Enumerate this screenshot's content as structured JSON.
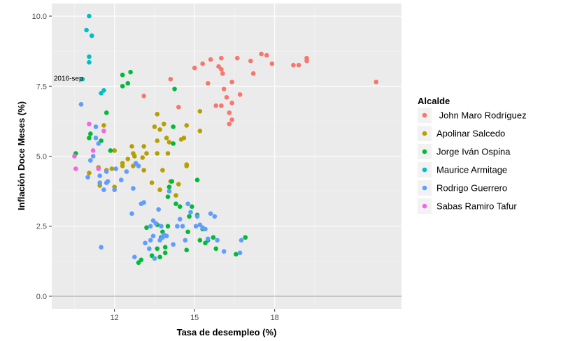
{
  "chart_data": {
    "type": "scatter",
    "xlabel": "Tasa de desempleo (%)",
    "ylabel": "Inflación Doce Meses (%)",
    "xlim": [
      9.65,
      22.75
    ],
    "ylim": [
      -0.45,
      10.45
    ],
    "x_ticks": [
      12,
      15,
      18
    ],
    "x_tick_labels": [
      "12",
      "15",
      "18"
    ],
    "y_ticks": [
      0,
      2.5,
      5,
      7.5,
      10
    ],
    "y_tick_labels": [
      "0.0",
      "2.5",
      "5.0",
      "7.5",
      "10.0"
    ],
    "hline": 0,
    "grid": true,
    "legend": {
      "title": "Alcalde",
      "placement": "right"
    },
    "annotations": [
      {
        "text": "2016-sep",
        "x": 10.9,
        "y": 7.78
      }
    ],
    "series": [
      {
        "name": " John Maro Rodríguez",
        "color": "#F8766D",
        "points": [
          [
            13.1,
            7.15
          ],
          [
            14.1,
            7.75
          ],
          [
            14.4,
            6.75
          ],
          [
            15.0,
            8.15
          ],
          [
            15.3,
            8.3
          ],
          [
            15.6,
            8.45
          ],
          [
            15.5,
            7.6
          ],
          [
            15.8,
            6.8
          ],
          [
            15.9,
            8.2
          ],
          [
            16.0,
            8.1
          ],
          [
            16.05,
            7.95
          ],
          [
            16.0,
            8.5
          ],
          [
            16.1,
            7.4
          ],
          [
            16.2,
            7.1
          ],
          [
            16.0,
            6.8
          ],
          [
            16.3,
            6.55
          ],
          [
            16.3,
            6.15
          ],
          [
            16.4,
            6.3
          ],
          [
            16.4,
            6.9
          ],
          [
            16.4,
            7.65
          ],
          [
            16.6,
            8.5
          ],
          [
            16.7,
            7.2
          ],
          [
            17.1,
            8.4
          ],
          [
            17.2,
            7.95
          ],
          [
            17.5,
            8.65
          ],
          [
            17.7,
            8.6
          ],
          [
            17.9,
            8.3
          ],
          [
            18.7,
            8.25
          ],
          [
            18.9,
            8.25
          ],
          [
            19.2,
            8.4
          ],
          [
            19.2,
            8.5
          ],
          [
            21.8,
            7.65
          ]
        ]
      },
      {
        "name": "Apolinar Salcedo",
        "color": "#B79F00",
        "points": [
          [
            11.05,
            4.4
          ],
          [
            11.4,
            4.6
          ],
          [
            11.45,
            3.95
          ],
          [
            11.6,
            6.1
          ],
          [
            11.7,
            4.5
          ],
          [
            11.9,
            4.55
          ],
          [
            12.0,
            3.9
          ],
          [
            12.0,
            5.2
          ],
          [
            12.3,
            4.65
          ],
          [
            12.3,
            4.75
          ],
          [
            12.5,
            4.9
          ],
          [
            12.65,
            5.35
          ],
          [
            12.7,
            5.1
          ],
          [
            12.7,
            4.65
          ],
          [
            12.75,
            5.0
          ],
          [
            12.9,
            4.65
          ],
          [
            13.05,
            4.95
          ],
          [
            13.1,
            5.35
          ],
          [
            13.1,
            4.5
          ],
          [
            13.2,
            5.1
          ],
          [
            13.4,
            4.05
          ],
          [
            13.5,
            6.05
          ],
          [
            13.6,
            5.55
          ],
          [
            13.6,
            6.5
          ],
          [
            13.6,
            5.1
          ],
          [
            13.7,
            3.8
          ],
          [
            13.7,
            5.95
          ],
          [
            13.8,
            4.5
          ],
          [
            13.85,
            6.15
          ],
          [
            13.95,
            5.65
          ],
          [
            14.0,
            5.1
          ],
          [
            14.05,
            5.5
          ],
          [
            14.1,
            4.1
          ],
          [
            14.3,
            3.6
          ],
          [
            14.4,
            4.0
          ],
          [
            14.5,
            5.6
          ],
          [
            14.6,
            5.65
          ],
          [
            14.7,
            4.65
          ],
          [
            14.7,
            4.7
          ],
          [
            14.7,
            6.1
          ],
          [
            15.2,
            5.9
          ],
          [
            15.2,
            6.6
          ]
        ]
      },
      {
        "name": "Jorge Iván Ospina",
        "color": "#00BA38",
        "points": [
          [
            10.55,
            5.1
          ],
          [
            11.05,
            5.65
          ],
          [
            11.1,
            5.8
          ],
          [
            11.5,
            5.55
          ],
          [
            11.7,
            6.55
          ],
          [
            11.85,
            5.2
          ],
          [
            12.3,
            7.5
          ],
          [
            12.3,
            7.9
          ],
          [
            12.5,
            7.6
          ],
          [
            12.6,
            8.0
          ],
          [
            12.9,
            1.2
          ],
          [
            13.0,
            1.3
          ],
          [
            13.2,
            2.45
          ],
          [
            13.4,
            1.45
          ],
          [
            13.5,
            1.35
          ],
          [
            13.6,
            2.55
          ],
          [
            13.6,
            1.7
          ],
          [
            13.7,
            1.4
          ],
          [
            13.75,
            2.1
          ],
          [
            13.8,
            2.3
          ],
          [
            13.9,
            1.75
          ],
          [
            13.9,
            1.55
          ],
          [
            14.0,
            2.5
          ],
          [
            14.0,
            3.55
          ],
          [
            14.05,
            3.9
          ],
          [
            14.15,
            4.1
          ],
          [
            14.2,
            5.45
          ],
          [
            14.2,
            6.05
          ],
          [
            14.25,
            7.4
          ],
          [
            14.3,
            3.3
          ],
          [
            14.45,
            3.2
          ],
          [
            14.7,
            1.65
          ],
          [
            14.75,
            2.3
          ],
          [
            14.8,
            2.85
          ],
          [
            14.9,
            3.2
          ],
          [
            15.1,
            2.9
          ],
          [
            15.1,
            4.15
          ],
          [
            15.2,
            2.0
          ],
          [
            15.3,
            2.4
          ],
          [
            15.4,
            1.9
          ],
          [
            15.5,
            2.0
          ],
          [
            15.7,
            2.1
          ],
          [
            15.8,
            1.7
          ],
          [
            16.55,
            1.5
          ],
          [
            16.9,
            2.1
          ]
        ]
      },
      {
        "name": "Maurice Armitage",
        "color": "#00BFC4",
        "points": [
          [
            10.8,
            7.75
          ],
          [
            10.95,
            9.5
          ],
          [
            11.05,
            10.0
          ],
          [
            11.05,
            8.55
          ],
          [
            11.05,
            8.35
          ],
          [
            11.15,
            9.3
          ],
          [
            11.5,
            7.25
          ],
          [
            11.6,
            7.35
          ]
        ]
      },
      {
        "name": "Rodrigo Guerrero",
        "color": "#619CFF",
        "points": [
          [
            10.75,
            6.85
          ],
          [
            11.0,
            4.25
          ],
          [
            11.1,
            4.85
          ],
          [
            11.2,
            5.0
          ],
          [
            11.3,
            6.05
          ],
          [
            11.3,
            5.65
          ],
          [
            11.45,
            4.3
          ],
          [
            11.4,
            5.45
          ],
          [
            11.45,
            4.05
          ],
          [
            11.6,
            3.8
          ],
          [
            11.7,
            4.45
          ],
          [
            11.7,
            4.05
          ],
          [
            11.75,
            4.1
          ],
          [
            12.0,
            3.8
          ],
          [
            12.05,
            4.55
          ],
          [
            12.25,
            4.15
          ],
          [
            12.45,
            4.45
          ],
          [
            12.65,
            2.95
          ],
          [
            12.7,
            3.85
          ],
          [
            12.75,
            1.4
          ],
          [
            12.8,
            4.75
          ],
          [
            12.9,
            4.65
          ],
          [
            13.0,
            3.3
          ],
          [
            13.1,
            3.35
          ],
          [
            13.15,
            1.9
          ],
          [
            13.35,
            2.0
          ],
          [
            13.3,
            1.7
          ],
          [
            13.35,
            2.5
          ],
          [
            13.45,
            2.15
          ],
          [
            13.45,
            2.7
          ],
          [
            13.5,
            1.35
          ],
          [
            13.55,
            2.6
          ],
          [
            13.65,
            3.1
          ],
          [
            13.7,
            2.0
          ],
          [
            13.75,
            2.5
          ],
          [
            13.8,
            2.1
          ],
          [
            13.85,
            2.2
          ],
          [
            13.95,
            2.15
          ],
          [
            14.05,
            3.75
          ],
          [
            14.2,
            1.85
          ],
          [
            14.35,
            2.5
          ],
          [
            14.45,
            2.75
          ],
          [
            14.55,
            2.5
          ],
          [
            14.65,
            2.0
          ],
          [
            14.75,
            3.3
          ],
          [
            14.85,
            3.0
          ],
          [
            15.05,
            2.5
          ],
          [
            15.1,
            2.85
          ],
          [
            15.2,
            2.55
          ],
          [
            15.3,
            2.45
          ],
          [
            15.4,
            2.4
          ],
          [
            15.5,
            2.05
          ],
          [
            15.6,
            2.95
          ],
          [
            15.75,
            2.85
          ],
          [
            15.85,
            2.0
          ],
          [
            16.1,
            1.6
          ],
          [
            16.7,
            1.55
          ],
          [
            16.75,
            2.0
          ],
          [
            11.5,
            1.75
          ]
        ]
      },
      {
        "name": "Sabas Ramiro Tafur",
        "color": "#F564E3",
        "points": [
          [
            10.5,
            5.0
          ],
          [
            10.55,
            4.55
          ],
          [
            11.05,
            6.15
          ],
          [
            11.2,
            5.2
          ],
          [
            11.4,
            4.55
          ],
          [
            11.6,
            5.9
          ]
        ]
      }
    ]
  }
}
